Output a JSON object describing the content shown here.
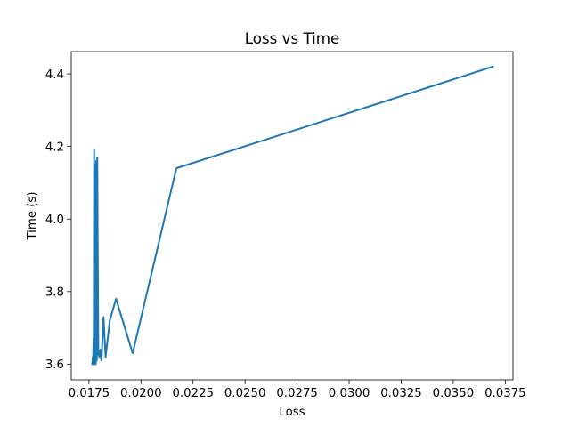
{
  "chart_data": {
    "type": "line",
    "title": "Loss vs Time",
    "xlabel": "Loss",
    "ylabel": "Time (s)",
    "xlim": [
      0.01665,
      0.03787
    ],
    "ylim": [
      3.5568,
      4.4615
    ],
    "xticks": [
      0.0175,
      0.02,
      0.0225,
      0.025,
      0.0275,
      0.03,
      0.0325,
      0.035,
      0.0375
    ],
    "xtick_labels": [
      "0.0175",
      "0.0200",
      "0.0225",
      "0.0250",
      "0.0275",
      "0.0300",
      "0.0325",
      "0.0350",
      "0.0375"
    ],
    "yticks": [
      3.6,
      3.8,
      4.0,
      4.2,
      4.4
    ],
    "ytick_labels": [
      "3.6",
      "3.8",
      "4.0",
      "4.2",
      "4.4"
    ],
    "grid": false,
    "legend": null,
    "series": [
      {
        "color": "#1f77b4",
        "x": [
          0.0369,
          0.0217,
          0.0196,
          0.0188,
          0.0185,
          0.0183,
          0.0182,
          0.0181,
          0.01805,
          0.018,
          0.01795,
          0.0179,
          0.01788,
          0.01785,
          0.01783,
          0.0178,
          0.01778,
          0.01776,
          0.01775,
          0.01773,
          0.01772,
          0.0177,
          0.01768,
          0.01766
        ],
        "y": [
          4.42,
          4.14,
          3.63,
          3.78,
          3.72,
          3.62,
          3.73,
          3.61,
          3.64,
          3.62,
          3.63,
          4.17,
          3.61,
          4.16,
          3.6,
          4.15,
          3.61,
          3.6,
          4.19,
          3.6,
          3.67,
          3.6,
          3.62,
          3.6
        ]
      }
    ]
  }
}
